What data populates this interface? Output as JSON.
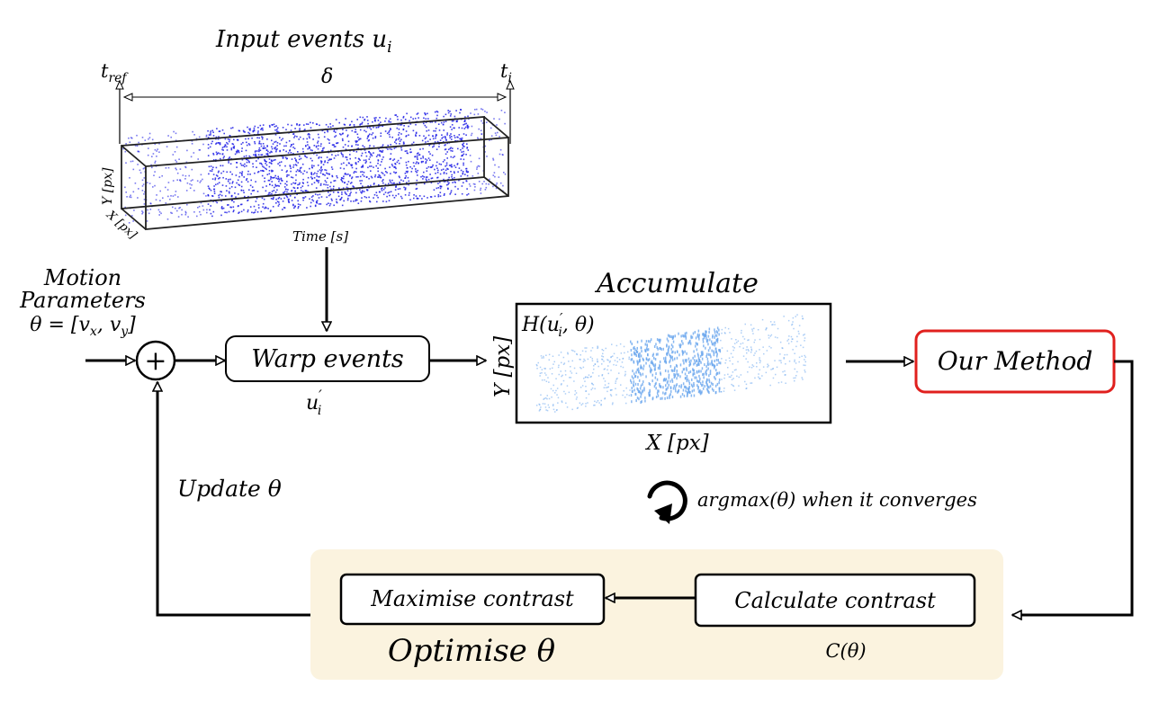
{
  "input_events": {
    "title": "Input events u",
    "title_sub": "i",
    "t_ref": "t",
    "t_ref_sub": "ref",
    "delta": "δ",
    "t_i": "t",
    "t_i_sub": "i",
    "y_axis": "Y [px]",
    "x_axis": "X [px]",
    "time_axis": "Time [s]"
  },
  "motion": {
    "line1": "Motion",
    "line2": "Parameters",
    "eq_prefix": "θ = [v",
    "sub_x": "x",
    "sep": ", v",
    "sub_y": "y",
    "eq_suffix": "]"
  },
  "sum_node": {
    "symbol": "+"
  },
  "warp": {
    "label": "Warp events",
    "output": "u",
    "output_prime": "′",
    "output_sub": "i"
  },
  "accumulate": {
    "title": "Accumulate",
    "h_pre": "H(u",
    "h_prime": "′",
    "h_sub": "i",
    "h_post": ", θ)",
    "y_axis": "Y [px]",
    "x_axis": "X [px]"
  },
  "our_method": {
    "label": "Our Method",
    "color": "#e0201e"
  },
  "update": {
    "label": "Update θ"
  },
  "converge": {
    "label": "argmax(θ) when it converges"
  },
  "optimise": {
    "label": "Optimise θ",
    "label_color": "#1a14e6",
    "panel_color": "#fbf3df"
  },
  "maximise": {
    "label": "Maximise contrast"
  },
  "calculate": {
    "label": "Calculate contrast",
    "output": "C(θ)"
  },
  "colors": {
    "events": "#1f1fe6",
    "accum": "#6aa6ee"
  }
}
